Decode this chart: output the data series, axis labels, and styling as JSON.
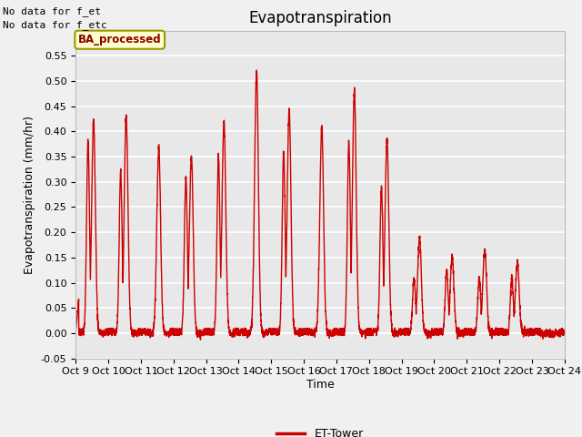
{
  "title": "Evapotranspiration",
  "ylabel": "Evapotranspiration (mm/hr)",
  "xlabel": "Time",
  "legend_label": "ET-Tower",
  "legend_line_color": "#cc0000",
  "line_color": "#cc0000",
  "plot_bg_color": "#e8e8e8",
  "fig_bg_color": "#f0f0f0",
  "ylim": [
    -0.05,
    0.6
  ],
  "yticks": [
    -0.05,
    0.0,
    0.05,
    0.1,
    0.15,
    0.2,
    0.25,
    0.3,
    0.35,
    0.4,
    0.45,
    0.5,
    0.55
  ],
  "xtick_labels": [
    "Oct 9",
    "Oct 10",
    "Oct 11",
    "Oct 12",
    "Oct 13",
    "Oct 14",
    "Oct 15",
    "Oct 16",
    "Oct 17",
    "Oct 18",
    "Oct 19",
    "Oct 20",
    "Oct 21",
    "Oct 22",
    "Oct 23",
    "Oct 24"
  ],
  "annotation_text1": "No data for f_et",
  "annotation_text2": "No data for f_etc",
  "box_label": "BA_processed",
  "box_facecolor": "#ffffcc",
  "box_edgecolor": "#999900",
  "n_days": 15,
  "n_per_day": 288,
  "peaks": [
    0.42,
    0.43,
    0.37,
    0.35,
    0.42,
    0.52,
    0.445,
    0.41,
    0.48,
    0.385,
    0.19,
    0.15,
    0.165,
    0.14,
    0.0
  ],
  "secondary_peaks": [
    0.38,
    0.32,
    0.0,
    0.31,
    0.35,
    0.0,
    0.36,
    0.0,
    0.38,
    0.29,
    0.11,
    0.125,
    0.11,
    0.11,
    0.0
  ],
  "title_fontsize": 12,
  "axis_fontsize": 9,
  "tick_fontsize": 8,
  "linewidth": 1.0
}
